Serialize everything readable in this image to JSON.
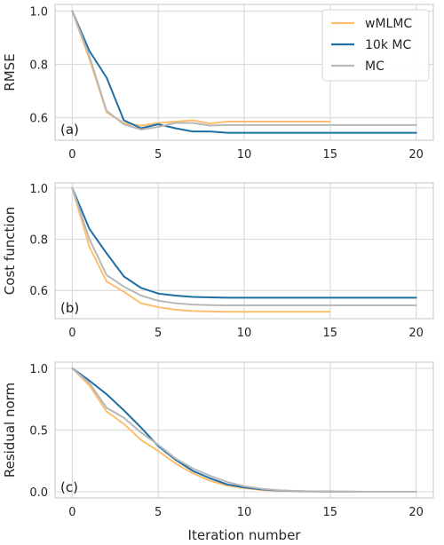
{
  "chart_data": [
    {
      "type": "line",
      "panel_label": "(a)",
      "ylabel": "RMSE",
      "xlabel": "",
      "xlim": [
        -1,
        21
      ],
      "ylim": [
        0.515,
        1.025
      ],
      "xticks": [
        0,
        5,
        10,
        15,
        20
      ],
      "yticks": [
        0.6,
        0.8,
        1.0
      ],
      "ytick_labels": [
        "0.6",
        "0.8",
        "1.0"
      ],
      "grid": true,
      "legend": "top-right",
      "series": [
        {
          "name": "wMLMC",
          "color": "#fdbf6f",
          "x": [
            0,
            1,
            2,
            3,
            4,
            5,
            6,
            7,
            8,
            9,
            10,
            11,
            12,
            13,
            14,
            15
          ],
          "y": [
            1.0,
            0.82,
            0.62,
            0.58,
            0.57,
            0.58,
            0.585,
            0.59,
            0.578,
            0.585,
            0.585,
            0.585,
            0.585,
            0.585,
            0.585,
            0.585
          ]
        },
        {
          "name": "10k MC",
          "color": "#1f6fa3",
          "x": [
            0,
            1,
            2,
            3,
            4,
            5,
            6,
            7,
            8,
            9,
            10,
            11,
            12,
            13,
            14,
            15,
            16,
            17,
            18,
            19,
            20
          ],
          "y": [
            1.0,
            0.85,
            0.75,
            0.59,
            0.56,
            0.575,
            0.56,
            0.548,
            0.548,
            0.543,
            0.543,
            0.543,
            0.543,
            0.543,
            0.543,
            0.543,
            0.543,
            0.543,
            0.543,
            0.543,
            0.543
          ]
        },
        {
          "name": "MC",
          "color": "#b8b8b8",
          "x": [
            0,
            1,
            2,
            3,
            4,
            5,
            6,
            7,
            8,
            9,
            10,
            11,
            12,
            13,
            14,
            15,
            16,
            17,
            18,
            19,
            20
          ],
          "y": [
            1.0,
            0.83,
            0.625,
            0.575,
            0.555,
            0.565,
            0.58,
            0.58,
            0.57,
            0.572,
            0.572,
            0.572,
            0.572,
            0.572,
            0.572,
            0.572,
            0.572,
            0.572,
            0.572,
            0.572,
            0.572
          ]
        }
      ]
    },
    {
      "type": "line",
      "panel_label": "(b)",
      "ylabel": "Cost function",
      "xlabel": "",
      "xlim": [
        -1,
        21
      ],
      "ylim": [
        0.49,
        1.02
      ],
      "xticks": [
        0,
        5,
        10,
        15,
        20
      ],
      "yticks": [
        0.6,
        0.8,
        1.0
      ],
      "ytick_labels": [
        "0.6",
        "0.8",
        "1.0"
      ],
      "grid": true,
      "series": [
        {
          "name": "wMLMC",
          "color": "#fdbf6f",
          "x": [
            0,
            1,
            2,
            3,
            4,
            5,
            6,
            7,
            8,
            9,
            10,
            11,
            12,
            13,
            14,
            15
          ],
          "y": [
            1.0,
            0.77,
            0.635,
            0.595,
            0.55,
            0.535,
            0.525,
            0.52,
            0.518,
            0.517,
            0.517,
            0.517,
            0.517,
            0.517,
            0.517,
            0.517
          ]
        },
        {
          "name": "10k MC",
          "color": "#1f6fa3",
          "x": [
            0,
            1,
            2,
            3,
            4,
            5,
            6,
            7,
            8,
            9,
            10,
            11,
            12,
            13,
            14,
            15,
            16,
            17,
            18,
            19,
            20
          ],
          "y": [
            1.0,
            0.84,
            0.745,
            0.655,
            0.61,
            0.588,
            0.58,
            0.575,
            0.573,
            0.572,
            0.572,
            0.572,
            0.572,
            0.572,
            0.572,
            0.572,
            0.572,
            0.572,
            0.572,
            0.572,
            0.572
          ]
        },
        {
          "name": "MC",
          "color": "#b8b8b8",
          "x": [
            0,
            1,
            2,
            3,
            4,
            5,
            6,
            7,
            8,
            9,
            10,
            11,
            12,
            13,
            14,
            15,
            16,
            17,
            18,
            19,
            20
          ],
          "y": [
            1.0,
            0.8,
            0.66,
            0.615,
            0.58,
            0.56,
            0.55,
            0.545,
            0.543,
            0.542,
            0.542,
            0.542,
            0.542,
            0.542,
            0.542,
            0.542,
            0.542,
            0.542,
            0.542,
            0.542,
            0.542
          ]
        }
      ]
    },
    {
      "type": "line",
      "panel_label": "(c)",
      "ylabel": "Residual norm",
      "xlabel": "Iteration number",
      "xlim": [
        -1,
        21
      ],
      "ylim": [
        -0.05,
        1.05
      ],
      "xticks": [
        0,
        5,
        10,
        15,
        20
      ],
      "yticks": [
        0.0,
        0.5,
        1.0
      ],
      "ytick_labels": [
        "0.0",
        "0.5",
        "1.0"
      ],
      "grid": true,
      "series": [
        {
          "name": "wMLMC",
          "color": "#fdbf6f",
          "x": [
            0,
            1,
            2,
            3,
            4,
            5,
            6,
            7,
            8,
            9,
            10,
            11,
            12,
            13,
            14,
            15
          ],
          "y": [
            1.0,
            0.86,
            0.65,
            0.55,
            0.42,
            0.33,
            0.23,
            0.15,
            0.09,
            0.05,
            0.03,
            0.015,
            0.008,
            0.004,
            0.002,
            0.001
          ]
        },
        {
          "name": "10k MC",
          "color": "#1f6fa3",
          "x": [
            0,
            1,
            2,
            3,
            4,
            5,
            6,
            7,
            8,
            9,
            10,
            11,
            12,
            13,
            14,
            15,
            16,
            17,
            18,
            19,
            20
          ],
          "y": [
            1.0,
            0.9,
            0.79,
            0.66,
            0.52,
            0.37,
            0.26,
            0.17,
            0.11,
            0.06,
            0.035,
            0.02,
            0.01,
            0.006,
            0.003,
            0.002,
            0.001,
            0.0,
            0.0,
            0.0,
            0.0
          ]
        },
        {
          "name": "MC",
          "color": "#b8b8b8",
          "x": [
            0,
            1,
            2,
            3,
            4,
            5,
            6,
            7,
            8,
            9,
            10,
            11,
            12,
            13,
            14,
            15,
            16,
            17,
            18,
            19,
            20
          ],
          "y": [
            1.0,
            0.88,
            0.68,
            0.6,
            0.48,
            0.38,
            0.27,
            0.19,
            0.13,
            0.08,
            0.045,
            0.025,
            0.013,
            0.007,
            0.004,
            0.002,
            0.001,
            0.0,
            0.0,
            0.0,
            0.0
          ]
        }
      ]
    }
  ]
}
